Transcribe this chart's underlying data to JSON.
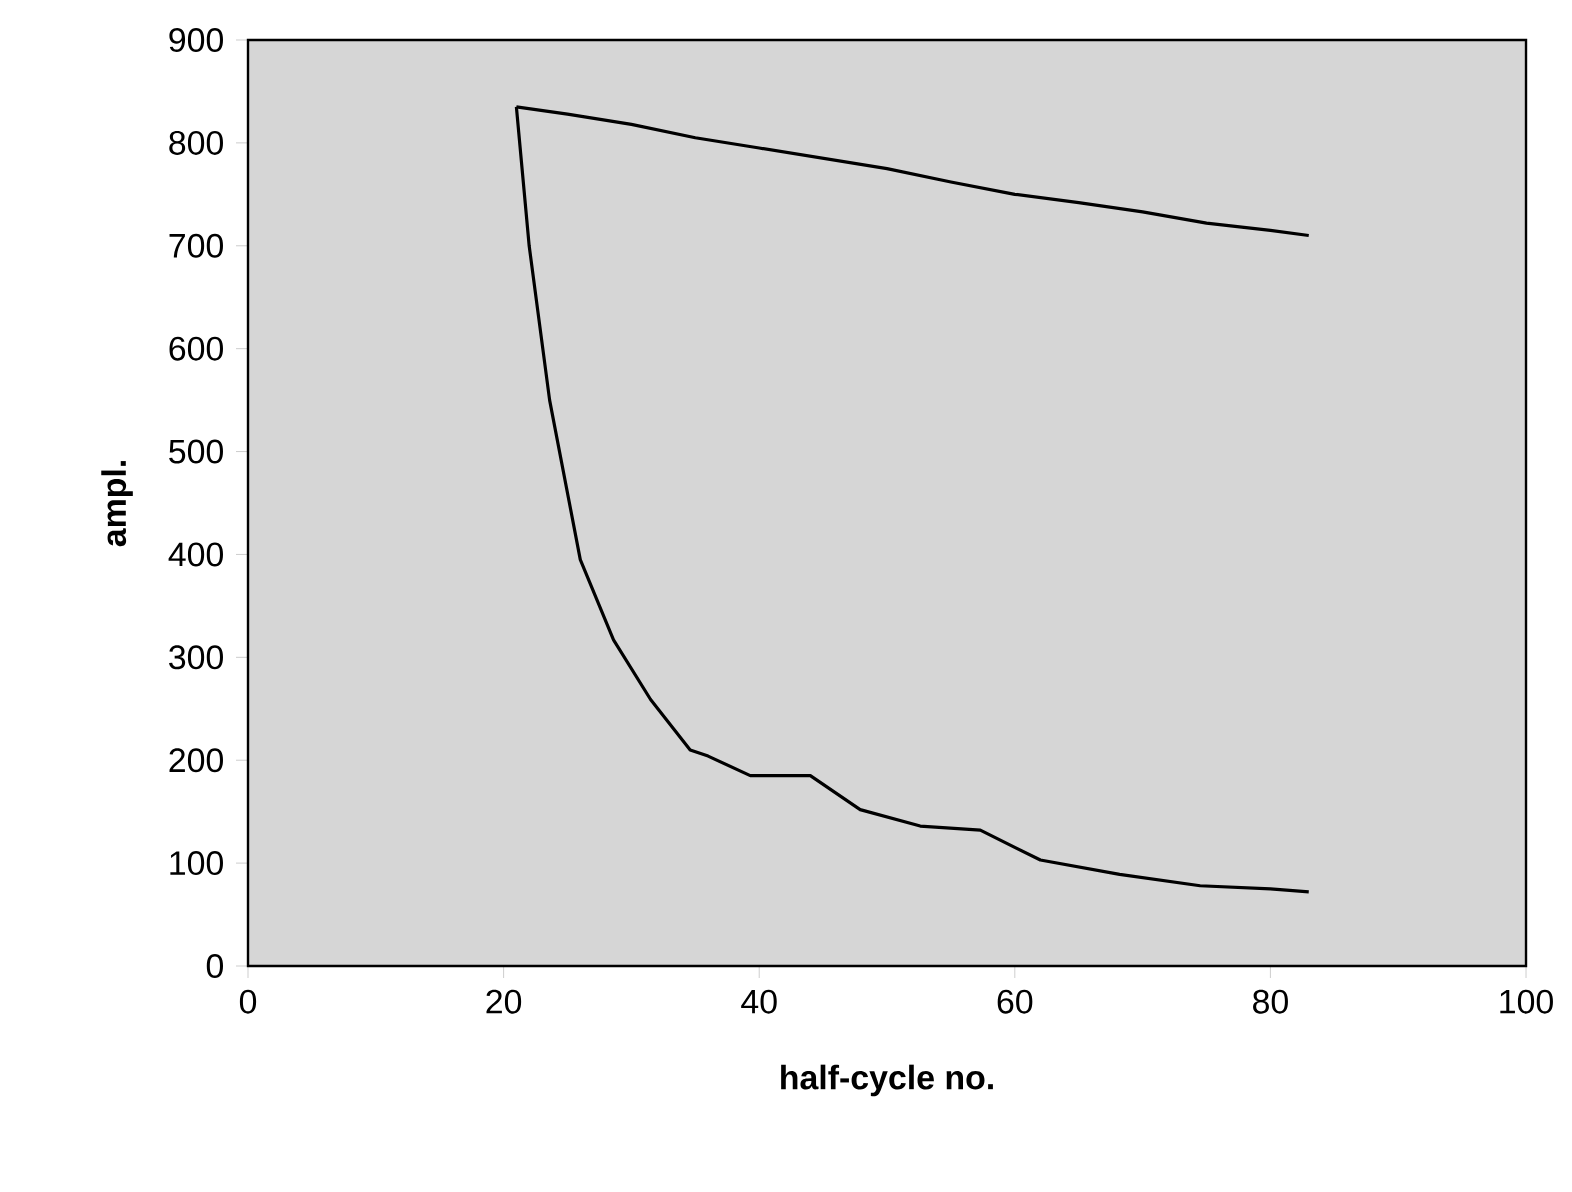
{
  "chart_data": {
    "type": "line",
    "xlabel": "half-cycle no.",
    "ylabel": "ampl.",
    "xlim": [
      0,
      100
    ],
    "ylim": [
      0,
      900
    ],
    "xticks": [
      0,
      20,
      40,
      60,
      80,
      100
    ],
    "yticks": [
      0,
      100,
      200,
      300,
      400,
      500,
      600,
      700,
      800,
      900
    ],
    "marker": "none",
    "line_style": "solid",
    "series": [
      {
        "color": "#000000",
        "x": [
          21,
          25,
          30,
          35,
          40,
          45,
          50,
          55,
          60,
          65,
          70,
          75,
          80,
          83
        ],
        "values": [
          835,
          828,
          818,
          805,
          795,
          785,
          775,
          762,
          750,
          742,
          733,
          722,
          715,
          710
        ]
      },
      {
        "color": "#000000",
        "x": [
          21,
          22,
          23.6,
          26,
          28.6,
          31.5,
          34.6,
          36,
          39.3,
          44,
          47.9,
          52.6,
          57.3,
          62,
          68.2,
          74.5,
          80,
          83
        ],
        "values": [
          835,
          700,
          550,
          395,
          317,
          259,
          210,
          204,
          185,
          185,
          152,
          136,
          132,
          103,
          89,
          78,
          75,
          72
        ]
      }
    ]
  }
}
